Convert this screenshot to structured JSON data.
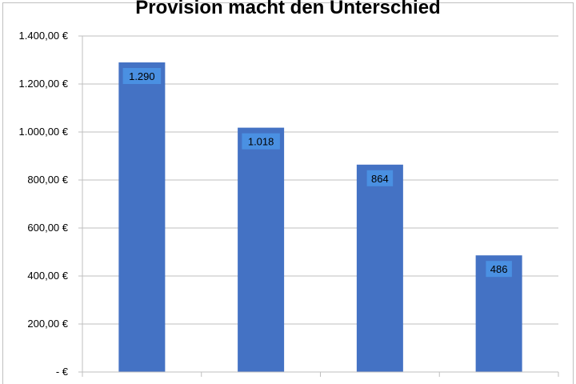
{
  "chart_data": {
    "type": "bar",
    "title": "Provision macht den Unterschied",
    "categories": [
      "",
      "",
      "",
      ""
    ],
    "values": [
      1290,
      1018,
      864,
      486
    ],
    "data_labels": [
      "1.290",
      "1.018",
      "864",
      "486"
    ],
    "ylim": [
      0,
      1400
    ],
    "yticks": [
      0,
      200,
      400,
      600,
      800,
      1000,
      1200,
      1400
    ],
    "ytick_labels": [
      "-   €",
      "200,00 €",
      "400,00 €",
      "600,00 €",
      "800,00 €",
      "1.000,00 €",
      "1.200,00 €",
      "1.400,00 €"
    ],
    "xlabel": "",
    "ylabel": "",
    "grid": true,
    "bar_color": "#4472c4",
    "label_box_color": "#4a90e2",
    "gridline_color": "#bfbfbf"
  }
}
